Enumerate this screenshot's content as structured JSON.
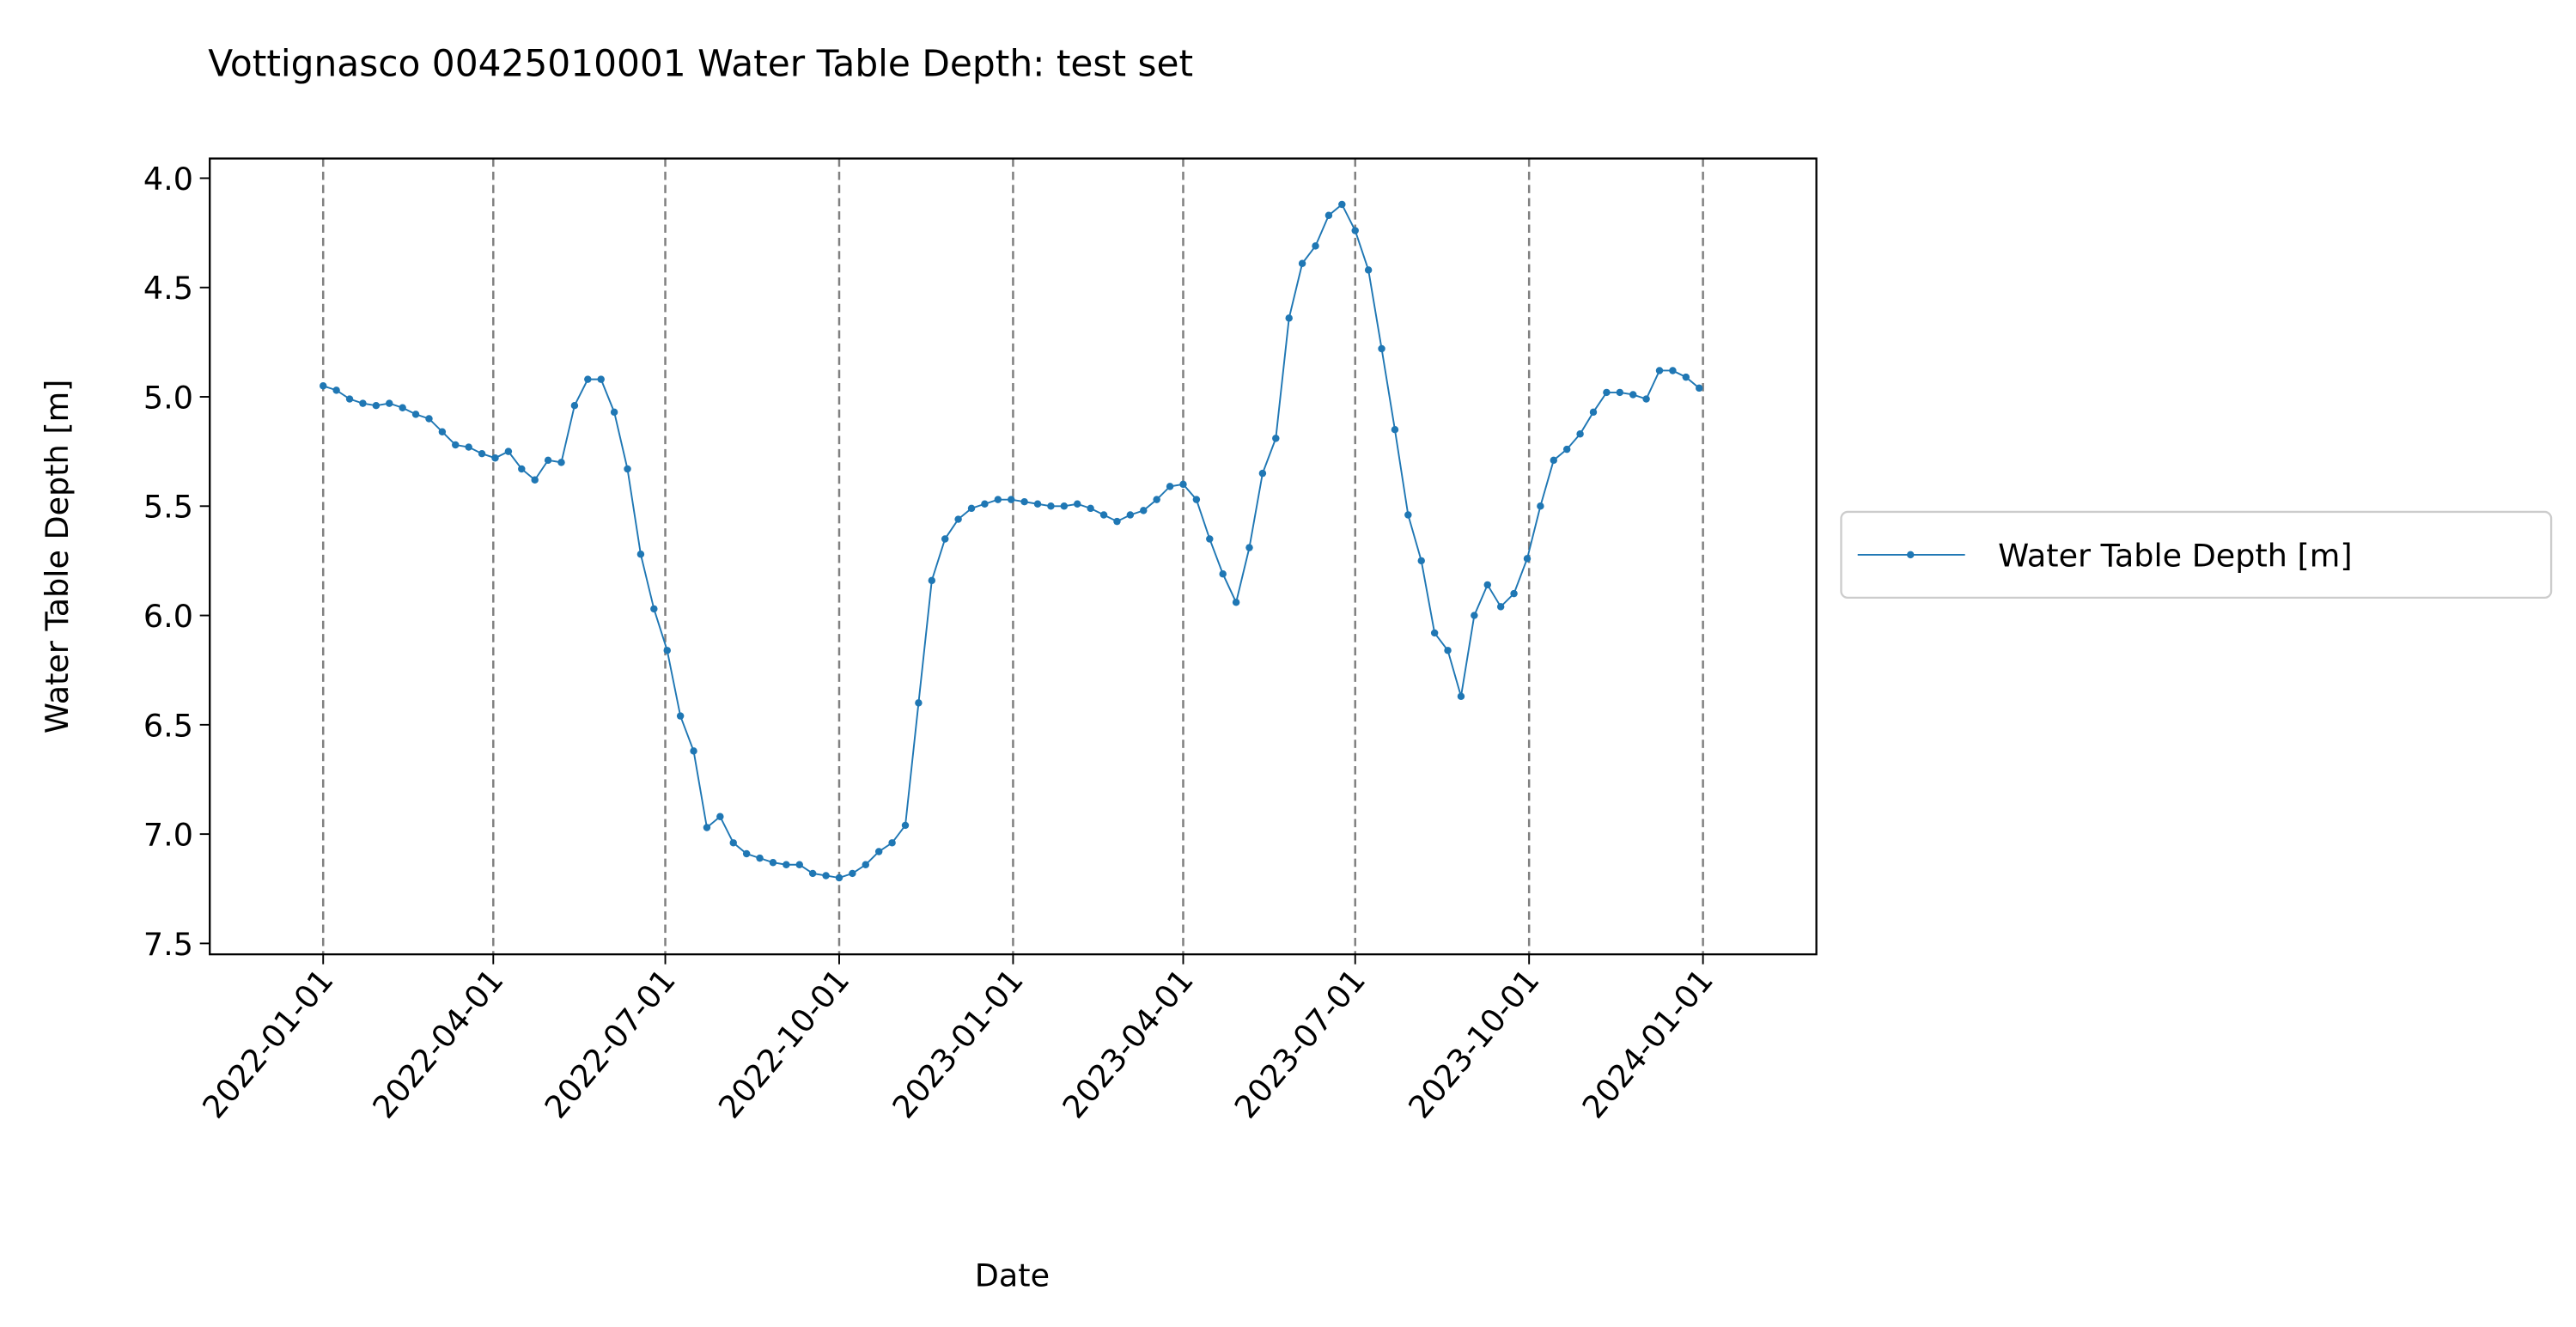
{
  "chart_data": {
    "type": "line",
    "title": "Vottignasco 00425010001 Water Table Depth: test set",
    "x_label": "Date",
    "y_label": "Water Table Depth [m]",
    "x": [
      "2022-01-01",
      "2022-01-08",
      "2022-01-15",
      "2022-01-22",
      "2022-01-29",
      "2022-02-05",
      "2022-02-12",
      "2022-02-19",
      "2022-02-26",
      "2022-03-05",
      "2022-03-12",
      "2022-03-19",
      "2022-03-26",
      "2022-04-02",
      "2022-04-09",
      "2022-04-16",
      "2022-04-23",
      "2022-04-30",
      "2022-05-07",
      "2022-05-14",
      "2022-05-21",
      "2022-05-28",
      "2022-06-04",
      "2022-06-11",
      "2022-06-18",
      "2022-06-25",
      "2022-07-02",
      "2022-07-09",
      "2022-07-16",
      "2022-07-23",
      "2022-07-30",
      "2022-08-06",
      "2022-08-13",
      "2022-08-20",
      "2022-08-27",
      "2022-09-03",
      "2022-09-10",
      "2022-09-17",
      "2022-09-24",
      "2022-10-01",
      "2022-10-08",
      "2022-10-15",
      "2022-10-22",
      "2022-10-29",
      "2022-11-05",
      "2022-11-12",
      "2022-11-19",
      "2022-11-26",
      "2022-12-03",
      "2022-12-10",
      "2022-12-17",
      "2022-12-24",
      "2022-12-31",
      "2023-01-07",
      "2023-01-14",
      "2023-01-21",
      "2023-01-28",
      "2023-02-04",
      "2023-02-11",
      "2023-02-18",
      "2023-02-25",
      "2023-03-04",
      "2023-03-11",
      "2023-03-18",
      "2023-03-25",
      "2023-04-01",
      "2023-04-08",
      "2023-04-15",
      "2023-04-22",
      "2023-04-29",
      "2023-05-06",
      "2023-05-13",
      "2023-05-20",
      "2023-05-27",
      "2023-06-03",
      "2023-06-10",
      "2023-06-17",
      "2023-06-24",
      "2023-07-01",
      "2023-07-08",
      "2023-07-15",
      "2023-07-22",
      "2023-07-29",
      "2023-08-05",
      "2023-08-12",
      "2023-08-19",
      "2023-08-26",
      "2023-09-02",
      "2023-09-09",
      "2023-09-16",
      "2023-09-23",
      "2023-09-30",
      "2023-10-07",
      "2023-10-14",
      "2023-10-21",
      "2023-10-28",
      "2023-11-04",
      "2023-11-11",
      "2023-11-18",
      "2023-11-25",
      "2023-12-02",
      "2023-12-09",
      "2023-12-16",
      "2023-12-23",
      "2023-12-30"
    ],
    "series": [
      {
        "name": "Water Table Depth [m]",
        "color": "#1f77b4",
        "values": [
          4.95,
          4.97,
          5.01,
          5.03,
          5.04,
          5.03,
          5.05,
          5.08,
          5.1,
          5.16,
          5.22,
          5.23,
          5.26,
          5.28,
          5.25,
          5.33,
          5.38,
          5.29,
          5.3,
          5.04,
          4.92,
          4.92,
          5.07,
          5.33,
          5.72,
          5.97,
          6.16,
          6.46,
          6.62,
          6.97,
          6.92,
          7.04,
          7.09,
          7.11,
          7.13,
          7.14,
          7.14,
          7.18,
          7.19,
          7.2,
          7.18,
          7.14,
          7.08,
          7.04,
          6.96,
          6.4,
          5.84,
          5.65,
          5.56,
          5.51,
          5.49,
          5.47,
          5.47,
          5.48,
          5.49,
          5.5,
          5.5,
          5.49,
          5.51,
          5.54,
          5.57,
          5.54,
          5.52,
          5.47,
          5.41,
          5.4,
          5.47,
          5.65,
          5.81,
          5.94,
          5.69,
          5.35,
          5.19,
          4.64,
          4.39,
          4.31,
          4.17,
          4.12,
          4.24,
          4.42,
          4.78,
          5.15,
          5.54,
          5.75,
          6.08,
          6.16,
          6.37,
          6.0,
          5.86,
          5.96,
          5.9,
          5.74,
          5.5,
          5.29,
          5.24,
          5.17,
          5.07,
          4.98,
          4.98,
          4.99,
          5.01,
          4.88,
          4.88,
          4.91,
          4.96
        ]
      }
    ],
    "xlim": [
      "2021-11-02",
      "2024-03-01"
    ],
    "xticks": [
      "2022-01-01",
      "2022-04-01",
      "2022-07-01",
      "2022-10-01",
      "2023-01-01",
      "2023-04-01",
      "2023-07-01",
      "2023-10-01",
      "2024-01-01"
    ],
    "ylim": [
      3.91,
      7.55
    ],
    "y_inverted": true,
    "yticks": [
      {
        "value": 4,
        "label": "4.0"
      },
      4.5,
      {
        "value": 5,
        "label": "5.0"
      },
      5.5,
      {
        "value": 6,
        "label": "6.0"
      },
      6.5,
      {
        "value": 7,
        "label": "7.0"
      },
      7.5
    ],
    "x_grid": true,
    "legend": "center left outside"
  }
}
